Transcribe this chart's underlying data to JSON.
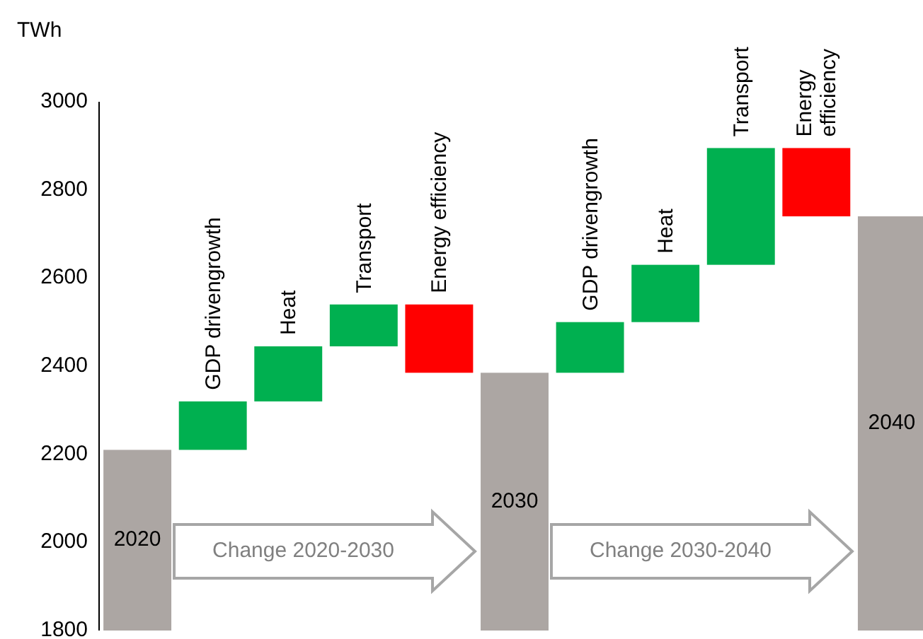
{
  "chart_data": {
    "type": "bar",
    "ylabel": "TWh",
    "categories": [
      "2020",
      "GDP drivengrowth",
      "Heat",
      "Transport",
      "Energy efficiency",
      "2030",
      "GDP drivengrowth",
      "Heat",
      "Transport",
      "Energy efficiency",
      "2040"
    ],
    "values": [
      2210,
      110,
      125,
      95,
      -155,
      2385,
      115,
      130,
      265,
      -155,
      2740
    ],
    "base": [
      null,
      2210,
      2320,
      2445,
      2540,
      null,
      2385,
      2500,
      2630,
      2895,
      null
    ],
    "colors": [
      "#aca6a3",
      "#00b050",
      "#00b050",
      "#00b050",
      "#ff0000",
      "#aca6a3",
      "#00b050",
      "#00b050",
      "#00b050",
      "#ff0000",
      "#aca6a3"
    ],
    "ylim": [
      1800,
      3000
    ],
    "yticks": [
      1800,
      2000,
      2200,
      2400,
      2600,
      2800,
      3000
    ],
    "grid": false,
    "annotations": [
      "Change 2020-2030",
      "Change 2030-2040"
    ]
  }
}
